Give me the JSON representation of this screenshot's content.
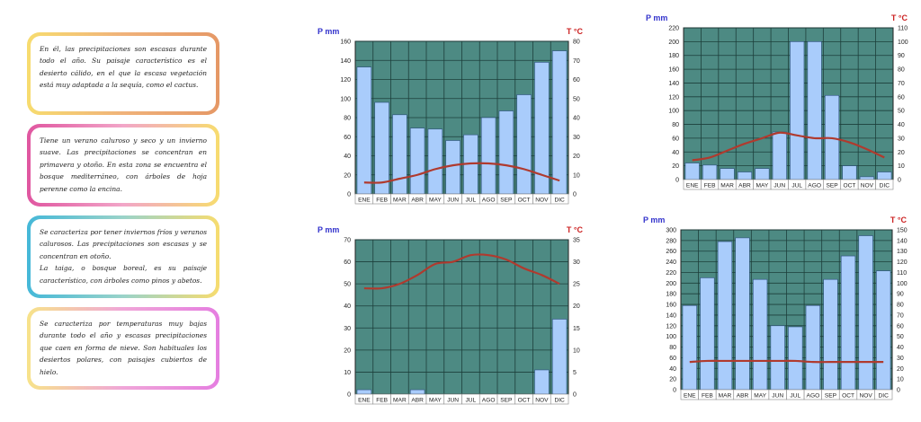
{
  "cards": [
    {
      "text": "En él, las precipitaciones son escasas durante todo el año. Su paisaje característico es el desierto cálido, en el que la escasa vegetación está muy adaptada a la sequía, como el cactus.",
      "border": "linear-gradient(90deg,#f7dc6f,#f0b27a,#e59866)"
    },
    {
      "text": "Tiene un verano caluroso y seco y un invierno suave. Las precipitaciones se concentran en primavera y otoño. En esta zona se encuentra el bosque mediterráneo, con árboles de hoja perenne como la encina.",
      "border": "linear-gradient(90deg,#e056a0,#f2a6c8,#f7dc6f)"
    },
    {
      "text": "Se caracteriza por tener inviernos fríos y veranos calurosos. Las precipitaciones son escasas y se concentran en otoño.\nLa taiga, o bosque boreal, es su paisaje característico, con árboles como pinos y abetos.",
      "border": "linear-gradient(90deg,#45b8d8,#9ad3c9,#f7dc6f)"
    },
    {
      "text": "Se caracteriza por temperaturas muy bajas durante todo el año y escasas precipitaciones que caen en forma de nieve. Son habituales los desiertos polares, con paisajes cubiertos de hielo.",
      "border": "linear-gradient(90deg,#f7e38a,#f0a6d8,#e57ee0)"
    }
  ],
  "colors": {
    "plot_bg": "#4d8a83",
    "bar": "#a9ccfb",
    "bar_stroke": "#2c4f7c",
    "temp_line": "#b03a2e",
    "p_label": "#3333cc",
    "t_label": "#cc2222"
  },
  "chart_data": [
    {
      "type": "bar",
      "ylabel": "P mm",
      "y2label": "T °C",
      "categories": [
        "ENE",
        "FEB",
        "MAR",
        "ABR",
        "MAY",
        "JUN",
        "JUL",
        "AGO",
        "SEP",
        "OCT",
        "NOV",
        "DIC"
      ],
      "series": [
        {
          "axis": "left",
          "kind": "bar",
          "values": [
            133,
            96,
            83,
            69,
            68,
            56,
            62,
            80,
            87,
            104,
            138,
            150
          ]
        },
        {
          "axis": "right",
          "kind": "line",
          "values": [
            6,
            6,
            8,
            10,
            13,
            15,
            16,
            16,
            15,
            13,
            10,
            7
          ]
        }
      ],
      "ylim": [
        0,
        160
      ],
      "y2lim": [
        0,
        80
      ],
      "yticks": [
        0,
        20,
        40,
        60,
        80,
        100,
        120,
        140,
        160
      ],
      "y2ticks": [
        0,
        10,
        20,
        30,
        40,
        50,
        60,
        70,
        80
      ]
    },
    {
      "type": "bar",
      "ylabel": "P mm",
      "y2label": "T °C",
      "categories": [
        "ENE",
        "FEB",
        "MAR",
        "ABR",
        "MAY",
        "JUN",
        "JUL",
        "AGO",
        "SEP",
        "OCT",
        "NOV",
        "DIC"
      ],
      "series": [
        {
          "axis": "left",
          "kind": "bar",
          "values": [
            24,
            21,
            16,
            11,
            16,
            69,
            200,
            200,
            122,
            20,
            4,
            11
          ]
        },
        {
          "axis": "right",
          "kind": "line",
          "values": [
            14,
            16,
            21,
            26,
            30,
            34,
            32,
            30,
            30,
            27,
            22,
            16
          ]
        }
      ],
      "ylim": [
        0,
        220
      ],
      "y2lim": [
        0,
        110
      ],
      "yticks": [
        0,
        20,
        40,
        60,
        80,
        100,
        120,
        140,
        160,
        180,
        200,
        220
      ],
      "y2ticks": [
        0,
        10,
        20,
        30,
        40,
        50,
        60,
        70,
        80,
        90,
        100,
        110
      ]
    },
    {
      "type": "bar",
      "ylabel": "P mm",
      "y2label": "T °C",
      "categories": [
        "ENE",
        "FEB",
        "MAR",
        "ABR",
        "MAY",
        "JUN",
        "JUL",
        "AGO",
        "SEP",
        "OCT",
        "NOV",
        "DIC"
      ],
      "series": [
        {
          "axis": "left",
          "kind": "bar",
          "values": [
            2,
            0,
            0,
            2,
            0,
            0,
            0,
            0,
            0,
            0,
            11,
            34
          ]
        },
        {
          "axis": "right",
          "kind": "line",
          "values": [
            24,
            24,
            25,
            27,
            29.5,
            30,
            31.5,
            31.5,
            30.5,
            28.5,
            27,
            25
          ]
        }
      ],
      "ylim": [
        0,
        70
      ],
      "y2lim": [
        0,
        35
      ],
      "yticks": [
        0,
        10,
        20,
        30,
        40,
        50,
        60,
        70
      ],
      "y2ticks": [
        0,
        5,
        10,
        15,
        20,
        25,
        30,
        35
      ]
    },
    {
      "type": "bar",
      "ylabel": "P mm",
      "y2label": "T °C",
      "categories": [
        "ENE",
        "FEB",
        "MAR",
        "ABR",
        "MAY",
        "JUN",
        "JUL",
        "AGO",
        "SEP",
        "OCT",
        "NOV",
        "DIC"
      ],
      "series": [
        {
          "axis": "left",
          "kind": "bar",
          "values": [
            158,
            210,
            278,
            285,
            207,
            120,
            118,
            158,
            207,
            251,
            289,
            223
          ]
        },
        {
          "axis": "right",
          "kind": "line",
          "values": [
            26,
            27,
            27,
            27,
            27,
            27,
            27,
            26,
            26,
            26,
            26,
            26
          ]
        }
      ],
      "ylim": [
        0,
        300
      ],
      "y2lim": [
        0,
        150
      ],
      "yticks": [
        0,
        20,
        40,
        60,
        80,
        100,
        120,
        140,
        160,
        180,
        200,
        220,
        240,
        260,
        280,
        300
      ],
      "y2ticks": [
        0,
        10,
        20,
        30,
        40,
        50,
        60,
        70,
        80,
        90,
        100,
        110,
        120,
        130,
        140,
        150
      ]
    }
  ]
}
